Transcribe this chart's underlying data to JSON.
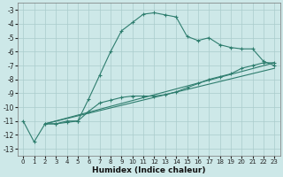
{
  "xlabel": "Humidex (Indice chaleur)",
  "bg_color": "#cde8e8",
  "grid_color": "#aacccc",
  "line_color": "#2e7d6e",
  "xlim": [
    -0.5,
    23.5
  ],
  "ylim": [
    -13.5,
    -2.5
  ],
  "xticks": [
    0,
    1,
    2,
    3,
    4,
    5,
    6,
    7,
    8,
    9,
    10,
    11,
    12,
    13,
    14,
    15,
    16,
    17,
    18,
    19,
    20,
    21,
    22,
    23
  ],
  "yticks": [
    -13,
    -12,
    -11,
    -10,
    -9,
    -8,
    -7,
    -6,
    -5,
    -4,
    -3
  ],
  "line1_x": [
    0,
    1,
    2,
    3,
    4,
    5,
    6,
    7,
    8,
    9,
    10,
    11,
    12,
    13,
    14,
    15,
    16,
    17,
    18,
    19,
    20,
    21,
    22,
    23
  ],
  "line1_y": [
    -11.0,
    -12.5,
    -11.2,
    -11.2,
    -11.1,
    -11.0,
    -9.4,
    -7.7,
    -6.0,
    -4.5,
    -3.9,
    -3.3,
    -3.2,
    -3.35,
    -3.5,
    -4.9,
    -5.2,
    -5.0,
    -5.5,
    -5.7,
    -5.8,
    -5.8,
    -6.7,
    -7.0
  ],
  "line2_x": [
    2,
    3,
    4,
    5,
    6,
    7,
    8,
    9,
    10,
    11,
    12,
    13,
    14,
    15,
    16,
    17,
    18,
    19,
    20,
    21,
    22,
    23
  ],
  "line2_y": [
    -11.2,
    -11.2,
    -11.0,
    -11.0,
    -10.3,
    -9.7,
    -9.5,
    -9.3,
    -9.2,
    -9.2,
    -9.2,
    -9.1,
    -8.9,
    -8.6,
    -8.3,
    -8.0,
    -7.8,
    -7.6,
    -7.2,
    -7.0,
    -6.8,
    -6.8
  ],
  "line3_x": [
    2,
    23
  ],
  "line3_y": [
    -11.2,
    -6.8
  ],
  "line4_x": [
    2,
    23
  ],
  "line4_y": [
    -11.2,
    -7.2
  ]
}
